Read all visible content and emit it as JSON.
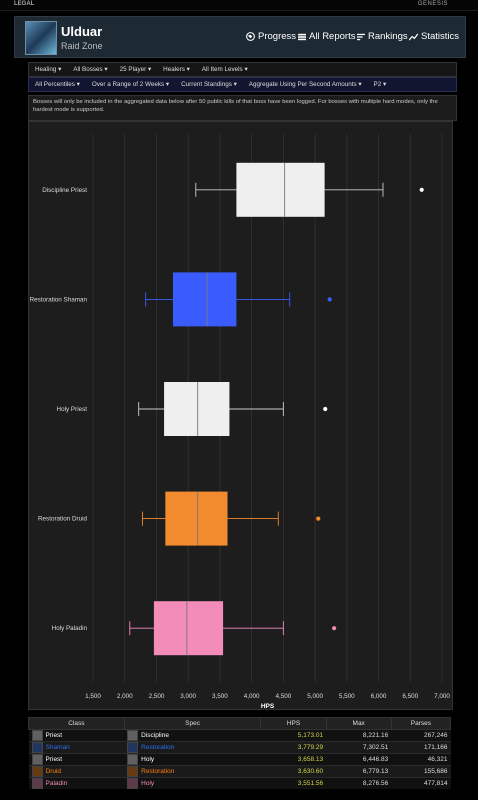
{
  "topbar": {
    "legal": "LEGAL",
    "genesis": "GENESIS"
  },
  "zone": {
    "title": "Ulduar",
    "subtitle": "Raid Zone"
  },
  "nav": [
    {
      "label": "Progress",
      "icon": "globe-icon"
    },
    {
      "label": "All Reports",
      "icon": "list-icon"
    },
    {
      "label": "Rankings",
      "icon": "bars-icon"
    },
    {
      "label": "Statistics",
      "icon": "trend-icon"
    }
  ],
  "filters_row1": [
    "Healing",
    "All Bosses",
    "25 Player",
    "Healers",
    "All Item Levels"
  ],
  "filters_row2": [
    "All Percentiles",
    "Over a Range of 2 Weeks",
    "Current Standings",
    "Aggregate Using Per Second Amounts",
    "P2"
  ],
  "notice": "Bosses will only be included in the aggregated data below after 50 public kills of that boss have been logged. For bosses with multiple hard modes, only the hardest mode is supported.",
  "chart_data": {
    "type": "boxplot",
    "orientation": "horizontal",
    "xlabel": "HPS",
    "xlim": [
      1500,
      7000
    ],
    "xticks": [
      "1,500",
      "2,000",
      "2,500",
      "3,000",
      "3,500",
      "4,000",
      "4,500",
      "5,000",
      "5,500",
      "6,000",
      "6,500",
      "7,000"
    ],
    "xtick_values": [
      1500,
      2000,
      2500,
      3000,
      3500,
      4000,
      4500,
      5000,
      5500,
      6000,
      6500,
      7000
    ],
    "grid": true,
    "series": [
      {
        "name": "Discipline Priest",
        "color": "#ffffff",
        "min": 3120,
        "q1": 3760,
        "median": 4520,
        "q3": 5150,
        "max": 6070,
        "outlier": 6680
      },
      {
        "name": "Restoration Shaman",
        "color": "#3a5cff",
        "min": 2330,
        "q1": 2760,
        "median": 3300,
        "q3": 3760,
        "max": 4600,
        "outlier": 5230
      },
      {
        "name": "Holy Priest",
        "color": "#ffffff",
        "min": 2220,
        "q1": 2620,
        "median": 3150,
        "q3": 3650,
        "max": 4500,
        "outlier": 5160
      },
      {
        "name": "Restoration Druid",
        "color": "#f28a2e",
        "min": 2280,
        "q1": 2640,
        "median": 3150,
        "q3": 3620,
        "max": 4420,
        "outlier": 5050
      },
      {
        "name": "Holy Paladin",
        "color": "#f48cba",
        "min": 2080,
        "q1": 2460,
        "median": 2980,
        "q3": 3550,
        "max": 4500,
        "outlier": 5300
      }
    ]
  },
  "table": {
    "headers": [
      "Class",
      "Spec",
      "HPS",
      "Max",
      "Parses"
    ],
    "rows": [
      {
        "class": "Priest",
        "class_color": "#ffffff",
        "class_icon": "priest-icon",
        "spec": "Discipline",
        "spec_color": "#ffffff",
        "spec_icon": "discipline-icon",
        "hps": "5,173.01",
        "max": "8,221.16",
        "parses": "267,246"
      },
      {
        "class": "Shaman",
        "class_color": "#2d6ef0",
        "class_icon": "shaman-icon",
        "spec": "Restoration",
        "spec_color": "#2d6ef0",
        "spec_icon": "restoration-icon",
        "hps": "3,779.29",
        "max": "7,302.51",
        "parses": "171,166"
      },
      {
        "class": "Priest",
        "class_color": "#ffffff",
        "class_icon": "priest-icon",
        "spec": "Holy",
        "spec_color": "#ffffff",
        "spec_icon": "holy-icon",
        "hps": "3,658.13",
        "max": "6,446.83",
        "parses": "46,321"
      },
      {
        "class": "Druid",
        "class_color": "#ff7d0a",
        "class_icon": "druid-icon",
        "spec": "Restoration",
        "spec_color": "#ff7d0a",
        "spec_icon": "restoration-icon",
        "hps": "3,630.60",
        "max": "6,779.13",
        "parses": "155,686"
      },
      {
        "class": "Paladin",
        "class_color": "#f58cba",
        "class_icon": "paladin-icon",
        "spec": "Holy",
        "spec_color": "#f58cba",
        "spec_icon": "holy-icon",
        "hps": "3,551.56",
        "max": "8,276.56",
        "parses": "477,814"
      }
    ],
    "hps_color": "#d4d44a"
  }
}
